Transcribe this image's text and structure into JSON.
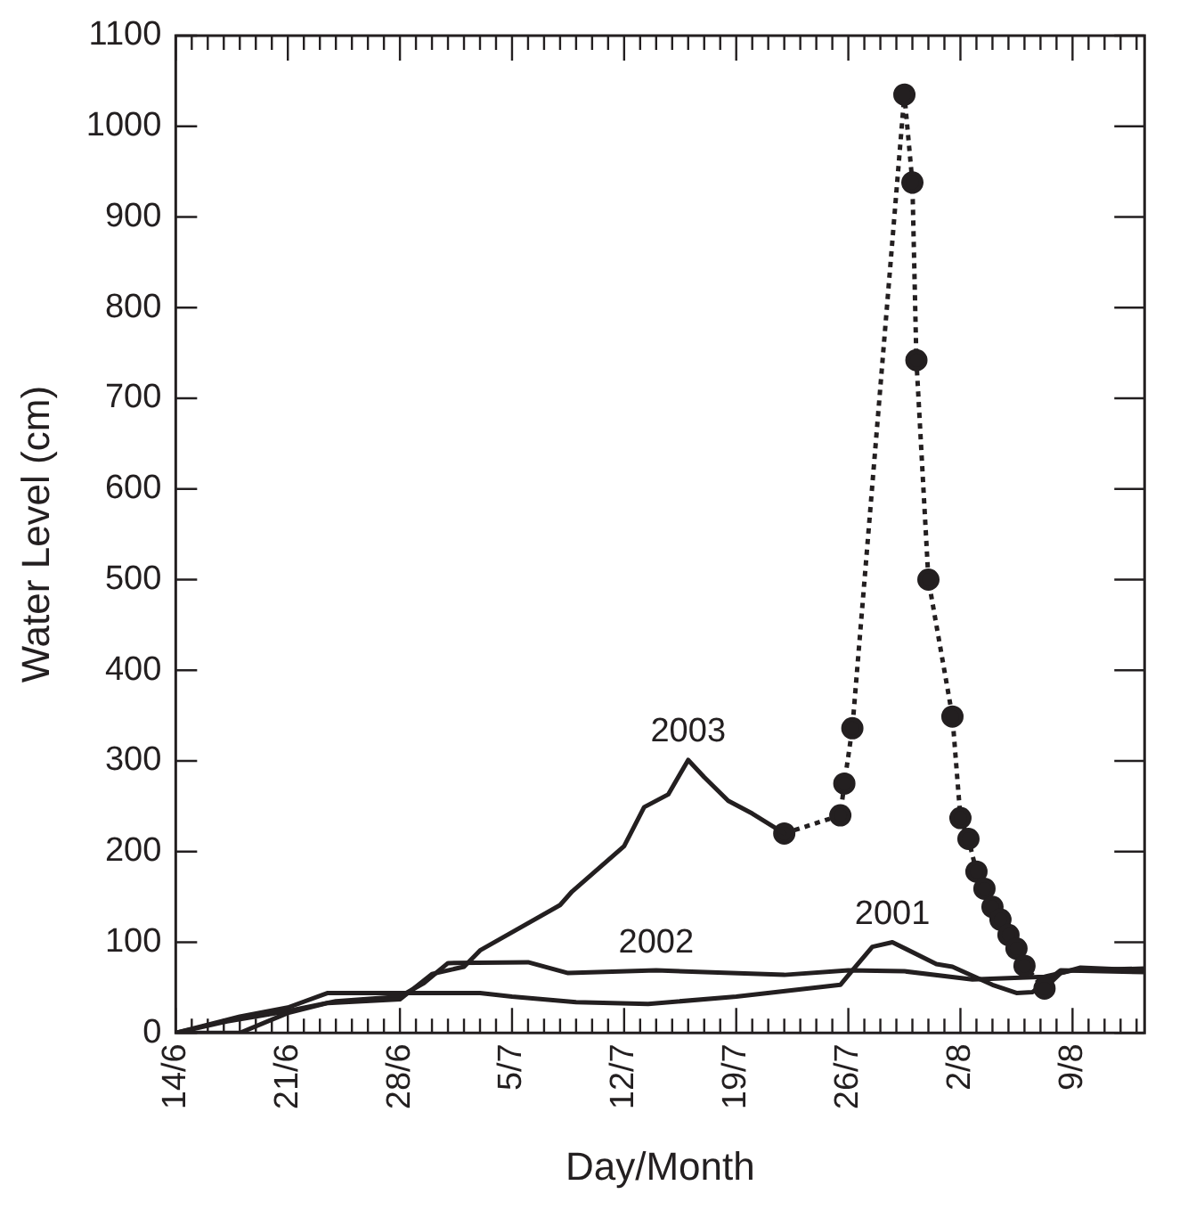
{
  "chart_data": {
    "type": "line",
    "xlabel": "Day/Month",
    "ylabel": "Water Level (cm)",
    "xlim": [
      "--06-14",
      "--08-13T12:00"
    ],
    "ylim": [
      0,
      1100
    ],
    "yticks": [
      0,
      100,
      200,
      300,
      400,
      500,
      600,
      700,
      800,
      900,
      1000,
      1100
    ],
    "xticks": [
      {
        "value": "--06-14",
        "label": "14/6"
      },
      {
        "value": "--06-15",
        "label": null
      },
      {
        "value": "--06-16",
        "label": null
      },
      {
        "value": "--06-17",
        "label": null
      },
      {
        "value": "--06-18",
        "label": null
      },
      {
        "value": "--06-19",
        "label": null
      },
      {
        "value": "--06-20",
        "label": null
      },
      {
        "value": "--06-21",
        "label": "21/6"
      },
      {
        "value": "--06-22",
        "label": null
      },
      {
        "value": "--06-23",
        "label": null
      },
      {
        "value": "--06-24",
        "label": null
      },
      {
        "value": "--06-25",
        "label": null
      },
      {
        "value": "--06-26",
        "label": null
      },
      {
        "value": "--06-27",
        "label": null
      },
      {
        "value": "--06-28",
        "label": "28/6"
      },
      {
        "value": "--06-29",
        "label": null
      },
      {
        "value": "--06-30",
        "label": null
      },
      {
        "value": "--07-01",
        "label": null
      },
      {
        "value": "--07-02",
        "label": null
      },
      {
        "value": "--07-03",
        "label": null
      },
      {
        "value": "--07-04",
        "label": null
      },
      {
        "value": "--07-05",
        "label": "5/7"
      },
      {
        "value": "--07-06",
        "label": null
      },
      {
        "value": "--07-07",
        "label": null
      },
      {
        "value": "--07-08",
        "label": null
      },
      {
        "value": "--07-09",
        "label": null
      },
      {
        "value": "--07-10",
        "label": null
      },
      {
        "value": "--07-11",
        "label": null
      },
      {
        "value": "--07-12",
        "label": "12/7"
      },
      {
        "value": "--07-13",
        "label": null
      },
      {
        "value": "--07-14",
        "label": null
      },
      {
        "value": "--07-15",
        "label": null
      },
      {
        "value": "--07-16",
        "label": null
      },
      {
        "value": "--07-17",
        "label": null
      },
      {
        "value": "--07-18",
        "label": null
      },
      {
        "value": "--07-19",
        "label": "19/7"
      },
      {
        "value": "--07-20",
        "label": null
      },
      {
        "value": "--07-21",
        "label": null
      },
      {
        "value": "--07-22",
        "label": null
      },
      {
        "value": "--07-23",
        "label": null
      },
      {
        "value": "--07-24",
        "label": null
      },
      {
        "value": "--07-25",
        "label": null
      },
      {
        "value": "--07-26",
        "label": "26/7"
      },
      {
        "value": "--07-27",
        "label": null
      },
      {
        "value": "--07-28",
        "label": null
      },
      {
        "value": "--07-29",
        "label": null
      },
      {
        "value": "--07-30",
        "label": null
      },
      {
        "value": "--07-31",
        "label": null
      },
      {
        "value": "--08-01",
        "label": null
      },
      {
        "value": "--08-02",
        "label": "2/8"
      },
      {
        "value": "--08-03",
        "label": null
      },
      {
        "value": "--08-04",
        "label": null
      },
      {
        "value": "--08-05",
        "label": null
      },
      {
        "value": "--08-06",
        "label": null
      },
      {
        "value": "--08-07",
        "label": null
      },
      {
        "value": "--08-08",
        "label": null
      },
      {
        "value": "--08-09",
        "label": "9/8"
      },
      {
        "value": "--08-10",
        "label": null
      },
      {
        "value": "--08-11",
        "label": null
      },
      {
        "value": "--08-12",
        "label": null
      },
      {
        "value": "--08-13",
        "label": null
      }
    ],
    "grid": false,
    "legend": false,
    "series": [
      {
        "name": "2003",
        "color": "#231f20",
        "line_style": "solid",
        "marker": "none",
        "x": [
          "--06-14",
          "--06-18",
          "--06-21",
          "--06-23T12:00",
          "--06-28",
          "--06-30",
          "--07-02",
          "--07-03",
          "--07-08",
          "--07-08T18:00",
          "--07-12",
          "--07-13T06:00",
          "--07-14T18:00",
          "--07-16",
          "--07-17",
          "--07-18T12:00",
          "--07-20",
          "--07-22"
        ],
        "values": [
          0,
          0,
          22,
          33,
          37,
          65,
          73,
          91,
          141,
          156,
          206,
          249,
          263,
          301,
          282,
          256,
          242,
          220
        ]
      },
      {
        "color": "#231f20",
        "line_style": "dotted",
        "marker": "circle",
        "x": [
          "--07-22",
          "--07-25T12:00",
          "--07-25T18:00",
          "--07-26T06:00",
          "--07-29T12:00",
          "--07-30",
          "--07-30T06:00",
          "--07-31",
          "--08-01T12:00",
          "--08-02",
          "--08-02T12:00",
          "--08-03",
          "--08-03T12:00",
          "--08-04",
          "--08-04T12:00",
          "--08-05",
          "--08-05T12:00",
          "--08-06",
          "--08-07T06:00"
        ],
        "values": [
          220,
          240,
          275,
          336,
          1035,
          938,
          742,
          500,
          349,
          237,
          214,
          178,
          159,
          139,
          125,
          108,
          93,
          74,
          49
        ]
      },
      {
        "color": "#231f20",
        "line_style": "solid",
        "marker": "none",
        "x": [
          "--08-07T06:00",
          "--08-08T06:00",
          "--08-09T12:00",
          "--08-13T12:00"
        ],
        "values": [
          49,
          66,
          72,
          69
        ]
      },
      {
        "name": "2002",
        "color": "#231f20",
        "line_style": "solid",
        "marker": "none",
        "x": [
          "--06-14",
          "--06-17",
          "--06-21",
          "--06-24",
          "--06-28",
          "--06-29T12:00",
          "--07-01",
          "--07-06",
          "--07-08T12:00",
          "--07-14",
          "--07-22",
          "--07-26",
          "--07-29T12:00",
          "--08-02T18:00",
          "--08-07T06:00",
          "--08-09",
          "--08-13T12:00"
        ],
        "values": [
          0,
          12,
          24,
          35,
          40,
          55,
          77,
          78,
          66,
          69,
          64,
          69,
          68,
          59,
          62,
          69,
          71
        ]
      },
      {
        "name": "2001",
        "color": "#231f20",
        "line_style": "solid",
        "marker": "none",
        "x": [
          "--06-14",
          "--06-18",
          "--06-21",
          "--06-23T12:00",
          "--06-28",
          "--07-03",
          "--07-05",
          "--07-09",
          "--07-13T12:00",
          "--07-19",
          "--07-25T12:00",
          "--07-26T06:00",
          "--07-27T12:00",
          "--07-28T18:00",
          "--07-31T12:00",
          "--08-01T12:00",
          "--08-04",
          "--08-05T12:00",
          "--08-06T12:00",
          "--08-08T06:00",
          "--08-13T12:00"
        ],
        "values": [
          0,
          18,
          28,
          44,
          44,
          44,
          40,
          34,
          32,
          40,
          53,
          69,
          95,
          100,
          76,
          73,
          53,
          44,
          45,
          69,
          67
        ]
      }
    ]
  }
}
